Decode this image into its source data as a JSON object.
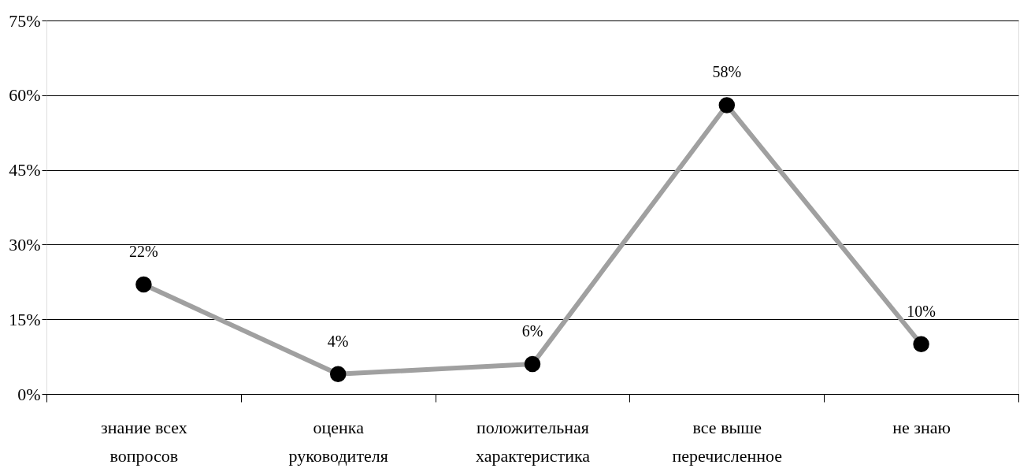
{
  "chart_data": {
    "type": "line",
    "categories": [
      "знание всех\nвопросов",
      "оценка\nруководителя",
      "положительная\nхарактеристика",
      "все выше\nперечисленное",
      "не знаю"
    ],
    "series": [
      {
        "color": "#a0a0a0",
        "values": [
          22,
          4,
          6,
          58,
          10
        ],
        "value_labels": [
          "22%",
          "4%",
          "6%",
          "58%",
          "10%"
        ]
      }
    ],
    "ylim": [
      0,
      75
    ],
    "yticks": [
      {
        "value": 0,
        "label": "0%"
      },
      {
        "value": 15,
        "label": "15%"
      },
      {
        "value": 30,
        "label": "30%"
      },
      {
        "value": 45,
        "label": "45%"
      },
      {
        "value": 60,
        "label": "60%"
      },
      {
        "value": 75,
        "label": "75%"
      }
    ],
    "grid": "y",
    "marker": "circle",
    "line_style": "solid"
  }
}
